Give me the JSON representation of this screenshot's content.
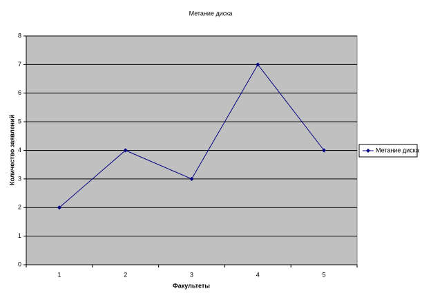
{
  "chart_data": {
    "type": "line",
    "title": "Метание диска",
    "x_label": "Факультеты",
    "y_label": "Количество заявлений",
    "categories": [
      "1",
      "2",
      "3",
      "4",
      "5"
    ],
    "series": [
      {
        "name": "Метание диска",
        "color": "#000080",
        "values": [
          2,
          4,
          3,
          7,
          4
        ]
      }
    ],
    "ylim": [
      0,
      8
    ],
    "yticks": [
      0,
      1,
      2,
      3,
      4,
      5,
      6,
      7,
      8
    ],
    "grid": true,
    "legend": "right"
  }
}
